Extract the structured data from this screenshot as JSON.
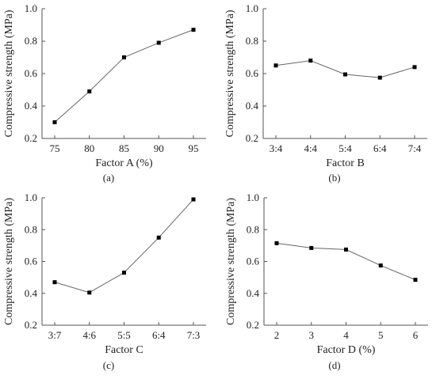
{
  "y_axis_label": "Compressive strength (MPa)",
  "chart_data": [
    {
      "type": "line",
      "caption": "(a)",
      "xlabel": "Factor A (%)",
      "ylabel": "Compressive strength (MPa)",
      "categories": [
        "75",
        "80",
        "85",
        "90",
        "95"
      ],
      "values": [
        0.3,
        0.49,
        0.7,
        0.79,
        0.87
      ],
      "ylim": [
        0.2,
        1.0
      ],
      "yticks": [
        "0.2",
        "0.4",
        "0.6",
        "0.8",
        "1.0"
      ],
      "grid": false
    },
    {
      "type": "line",
      "caption": "(b)",
      "xlabel": "Factor B",
      "ylabel": "Compressive strength (MPa)",
      "categories": [
        "3:4",
        "4:4",
        "5:4",
        "6:4",
        "7:4"
      ],
      "values": [
        0.65,
        0.68,
        0.595,
        0.575,
        0.64
      ],
      "ylim": [
        0.2,
        1.0
      ],
      "yticks": [
        "0.2",
        "0.4",
        "0.6",
        "0.8",
        "1.0"
      ],
      "grid": false
    },
    {
      "type": "line",
      "caption": "(c)",
      "xlabel": "Factor C",
      "ylabel": "Compressive strength (MPa)",
      "categories": [
        "3:7",
        "4:6",
        "5:5",
        "6:4",
        "7:3"
      ],
      "values": [
        0.47,
        0.405,
        0.53,
        0.75,
        0.99
      ],
      "ylim": [
        0.2,
        1.0
      ],
      "yticks": [
        "0.2",
        "0.4",
        "0.6",
        "0.8",
        "1.0"
      ],
      "grid": false
    },
    {
      "type": "line",
      "caption": "(d)",
      "xlabel": "Factor D (%)",
      "ylabel": "Compressive strength (MPa)",
      "categories": [
        "2",
        "3",
        "4",
        "5",
        "6"
      ],
      "values": [
        0.715,
        0.685,
        0.675,
        0.575,
        0.485
      ],
      "ylim": [
        0.2,
        1.0
      ],
      "yticks": [
        "0.2",
        "0.4",
        "0.6",
        "0.8",
        "1.0"
      ],
      "grid": false
    }
  ]
}
